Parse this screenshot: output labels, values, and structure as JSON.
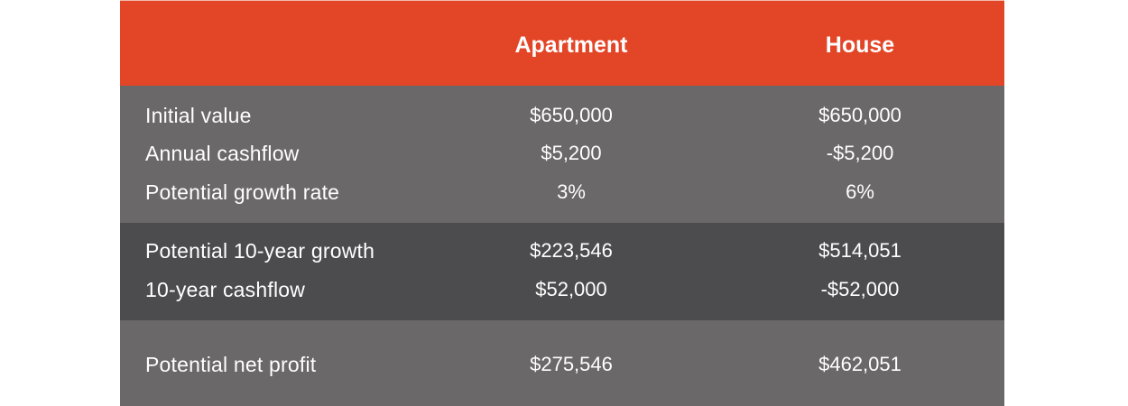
{
  "header": {
    "columns": [
      "Apartment",
      "House"
    ]
  },
  "sections": [
    {
      "rows": [
        {
          "label": "Initial value",
          "apartment": "$650,000",
          "house": "$650,000"
        },
        {
          "label": "Annual cashflow",
          "apartment": "$5,200",
          "house": "-$5,200"
        },
        {
          "label": "Potential growth rate",
          "apartment": "3%",
          "house": "6%"
        }
      ]
    },
    {
      "rows": [
        {
          "label": "Potential 10-year growth",
          "apartment": "$223,546",
          "house": "$514,051"
        },
        {
          "label": "10-year cashflow",
          "apartment": "$52,000",
          "house": "-$52,000"
        }
      ]
    },
    {
      "rows": [
        {
          "label": "Potential net profit",
          "apartment": "$275,546",
          "house": "$462,051"
        }
      ]
    }
  ],
  "colors": {
    "header_bg": "#e34527",
    "section_light": "#6a6869",
    "section_dark": "#4c4b4d",
    "text": "#ffffff"
  }
}
